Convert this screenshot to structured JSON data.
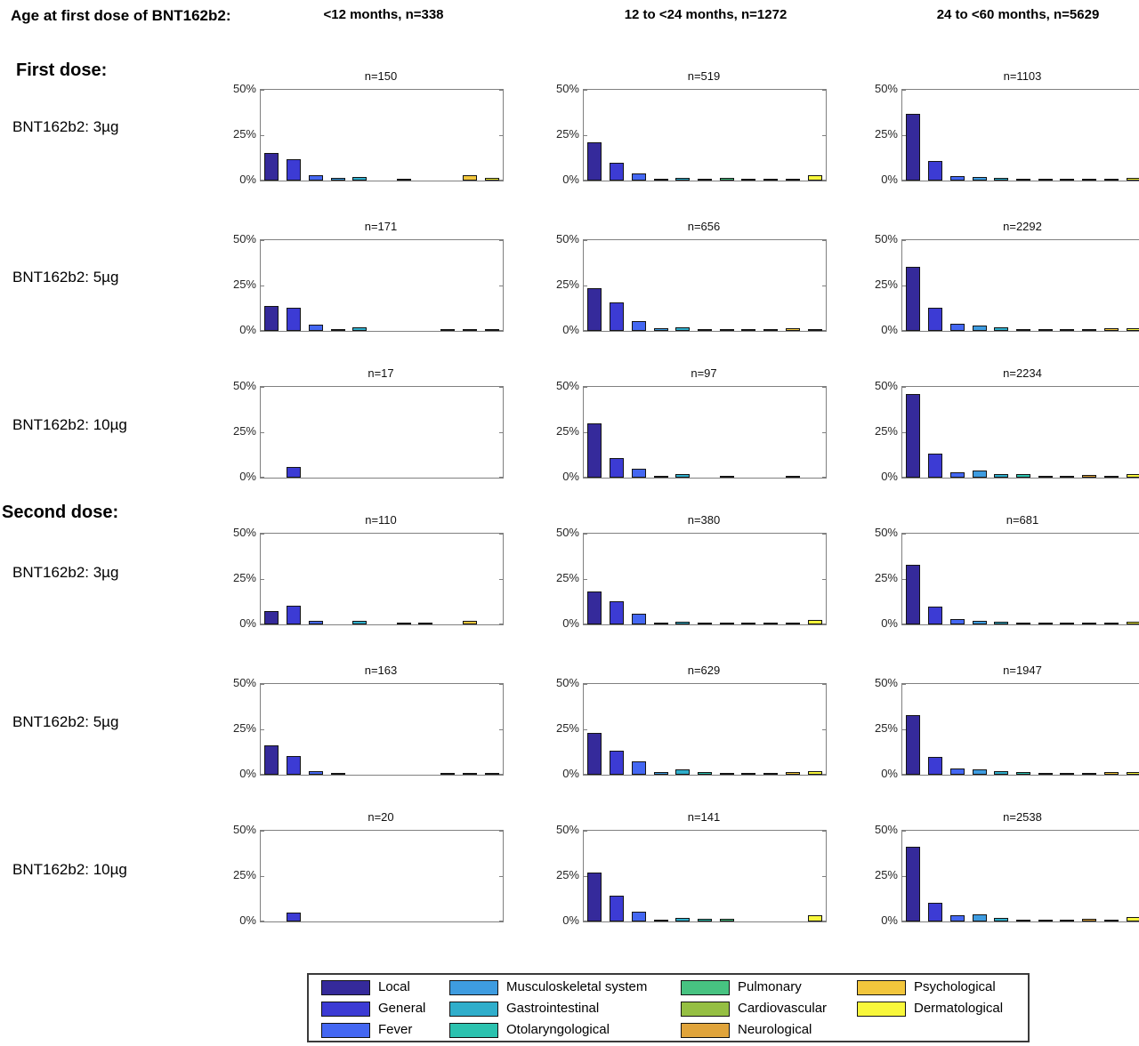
{
  "header": {
    "title": "Age at first dose of BNT162b2:",
    "age_groups": [
      "<12 months, n=338",
      "12 to <24 months, n=1272",
      "24 to <60 months, n=5629"
    ]
  },
  "chart_data": {
    "type": "bar",
    "title": "Age at first dose of BNT162b2:",
    "ylabel": "",
    "xlabel": "",
    "ylim": [
      0,
      50
    ],
    "yticks": [
      "0%",
      "25%",
      "50%"
    ],
    "grid": "off",
    "legend_position": "bottom",
    "categories": [
      "Local",
      "General",
      "Fever",
      "Musculoskeletal system",
      "Gastrointestinal",
      "Otolaryngological",
      "Pulmonary",
      "Cardiovascular",
      "Neurological",
      "Psychological",
      "Dermatological"
    ],
    "colors": [
      "#352A9B",
      "#3C3BD4",
      "#4467F2",
      "#3E9CE0",
      "#2FAECB",
      "#2BC2AF",
      "#47C381",
      "#95BF43",
      "#E0A43B",
      "#F2C63C",
      "#F8F73B"
    ],
    "columns": [
      "<12 months, n=338",
      "12 to <24 months, n=1272",
      "24 to <60 months, n=5629"
    ],
    "sections": [
      {
        "label": "First dose:",
        "rows": [
          {
            "dose": "BNT162b2: 3µg",
            "panels": [
              {
                "n": "n=150",
                "values": [
                  15,
                  12,
                  3,
                  1.3,
                  2,
                  0,
                  0.7,
                  0,
                  0,
                  3,
                  1.3
                ]
              },
              {
                "n": "n=519",
                "values": [
                  21,
                  10,
                  4,
                  0.6,
                  1.4,
                  0.5,
                  1.5,
                  0.4,
                  0.4,
                  1.2,
                  2.8
                ]
              },
              {
                "n": "n=1103",
                "values": [
                  37,
                  11,
                  2.5,
                  1.8,
                  1.5,
                  1.2,
                  1,
                  0.4,
                  0.9,
                  0.9,
                  1.4
                ]
              }
            ]
          },
          {
            "dose": "BNT162b2: 5µg",
            "panels": [
              {
                "n": "n=171",
                "values": [
                  13.5,
                  12.5,
                  3.2,
                  1.2,
                  1.8,
                  0,
                  0,
                  0,
                  0.6,
                  1.2,
                  0.6
                ]
              },
              {
                "n": "n=656",
                "values": [
                  23.5,
                  15.5,
                  5.5,
                  1.7,
                  2.2,
                  1.2,
                  1.2,
                  0.4,
                  0.7,
                  1.5,
                  1.2
                ]
              },
              {
                "n": "n=2292",
                "values": [
                  35.5,
                  12.5,
                  4,
                  3,
                  2,
                  1.2,
                  1,
                  0.4,
                  1,
                  1.7,
                  1.7
                ]
              }
            ]
          },
          {
            "dose": "BNT162b2: 10µg",
            "panels": [
              {
                "n": "n=17",
                "values": [
                  0,
                  6,
                  0,
                  0,
                  0,
                  0,
                  0,
                  0,
                  0,
                  0,
                  0
                ]
              },
              {
                "n": "n=97",
                "values": [
                  30,
                  11,
                  5,
                  1,
                  2,
                  0,
                  1,
                  0,
                  0,
                  1,
                  0
                ]
              },
              {
                "n": "n=2234",
                "values": [
                  46,
                  13,
                  2.8,
                  4,
                  2.2,
                  1.8,
                  0.8,
                  0.4,
                  1.5,
                  1.2,
                  2
                ]
              }
            ]
          }
        ]
      },
      {
        "label": "Second dose:",
        "rows": [
          {
            "dose": "BNT162b2: 3µg",
            "panels": [
              {
                "n": "n=110",
                "values": [
                  7.5,
                  10.5,
                  2,
                  0,
                  2,
                  0,
                  1,
                  1,
                  0,
                  2,
                  0
                ]
              },
              {
                "n": "n=380",
                "values": [
                  18,
                  12.5,
                  6,
                  1,
                  1.6,
                  0.3,
                  0.8,
                  0.3,
                  0.3,
                  0.8,
                  2.5
                ]
              },
              {
                "n": "n=681",
                "values": [
                  33,
                  10,
                  3,
                  2,
                  1.5,
                  1,
                  0.4,
                  0.3,
                  0.8,
                  1,
                  1.7
                ]
              }
            ]
          },
          {
            "dose": "BNT162b2: 5µg",
            "panels": [
              {
                "n": "n=163",
                "values": [
                  16,
                  10.5,
                  2,
                  1.2,
                  0,
                  0,
                  0,
                  0,
                  0.7,
                  1.2,
                  0.7
                ]
              },
              {
                "n": "n=629",
                "values": [
                  23,
                  13,
                  7.5,
                  1.4,
                  2.7,
                  1.4,
                  1.1,
                  0.4,
                  0.2,
                  1.7,
                  2.2
                ]
              },
              {
                "n": "n=1947",
                "values": [
                  33,
                  10,
                  3.5,
                  2.8,
                  2,
                  1.5,
                  0.6,
                  0.2,
                  1,
                  1.6,
                  1.6
                ]
              }
            ]
          },
          {
            "dose": "BNT162b2: 10µg",
            "panels": [
              {
                "n": "n=20",
                "values": [
                  0,
                  5,
                  0,
                  0,
                  0,
                  0,
                  0,
                  0,
                  0,
                  0,
                  0
                ]
              },
              {
                "n": "n=141",
                "values": [
                  27,
                  14,
                  5.5,
                  0.8,
                  2,
                  1.4,
                  1.4,
                  0,
                  0,
                  0,
                  3.5
                ]
              },
              {
                "n": "n=2538",
                "values": [
                  41,
                  10.5,
                  3.2,
                  4,
                  2.2,
                  1.2,
                  1,
                  0.4,
                  1.4,
                  1.2,
                  2.5
                ]
              }
            ]
          }
        ]
      }
    ]
  },
  "legend": {
    "column_indices": [
      [
        0,
        1,
        2
      ],
      [
        3,
        4,
        5
      ],
      [
        6,
        7,
        8
      ],
      [
        9,
        10
      ]
    ]
  }
}
